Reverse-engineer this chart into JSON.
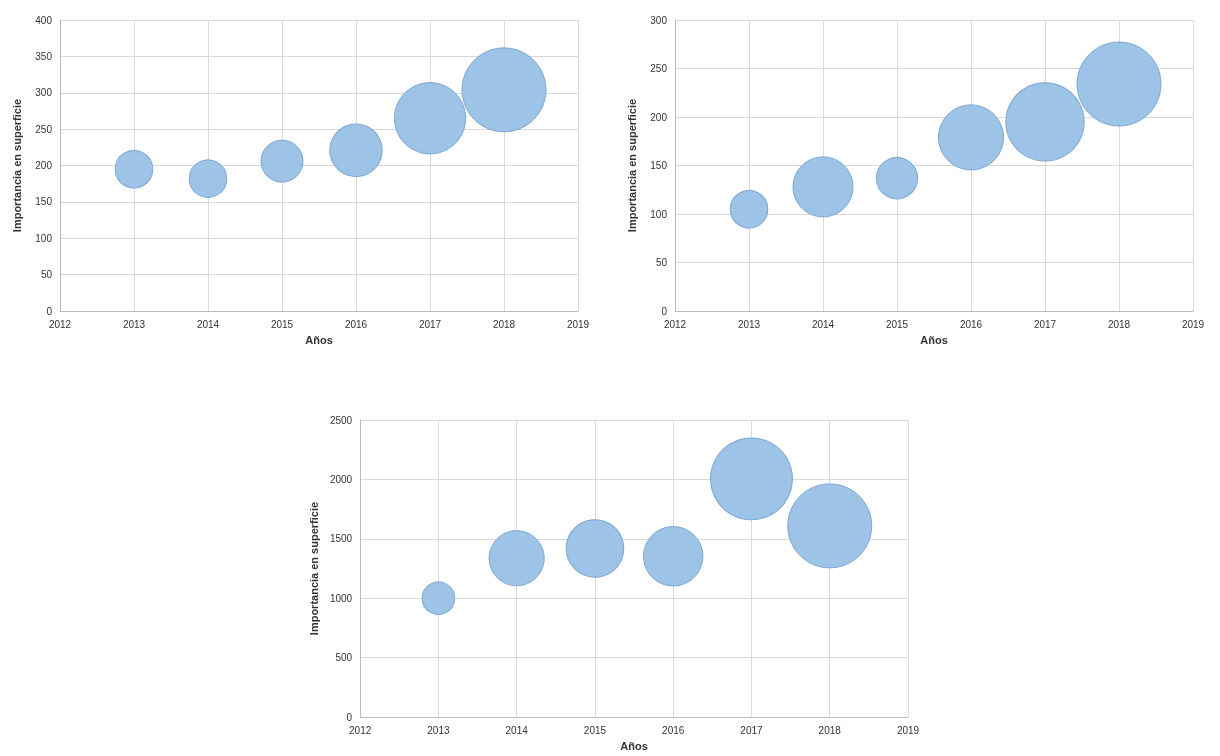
{
  "chart_data": [
    {
      "type": "bubble",
      "xlabel": "Años",
      "ylabel": "Importancia en superficie",
      "x": [
        2013,
        2014,
        2015,
        2016,
        2017,
        2018
      ],
      "values": [
        195,
        182,
        206,
        221,
        265,
        304
      ],
      "sizes": [
        0.2,
        0.2,
        0.25,
        0.39,
        0.72,
        1
      ],
      "color": "#9dc3e6",
      "xlim": [
        2012,
        2019
      ],
      "xticks": [
        2012,
        2013,
        2014,
        2015,
        2016,
        2017,
        2018,
        2019
      ],
      "ylim": [
        0,
        400
      ],
      "yticks": [
        0,
        50,
        100,
        150,
        200,
        250,
        300,
        350,
        400
      ],
      "grid": true
    },
    {
      "type": "bubble",
      "xlabel": "Años",
      "ylabel": "Importancia en superficie",
      "x": [
        2013,
        2014,
        2015,
        2016,
        2017,
        2018
      ],
      "values": [
        105,
        128,
        137,
        179,
        195,
        234
      ],
      "sizes": [
        0.2,
        0.51,
        0.24,
        0.6,
        0.87,
        1
      ],
      "color": "#9dc3e6",
      "xlim": [
        2012,
        2019
      ],
      "xticks": [
        2012,
        2013,
        2014,
        2015,
        2016,
        2017,
        2018,
        2019
      ],
      "ylim": [
        0,
        300
      ],
      "yticks": [
        0,
        50,
        100,
        150,
        200,
        250,
        300
      ],
      "grid": true
    },
    {
      "type": "bubble",
      "xlabel": "Años",
      "ylabel": "Importancia en superficie",
      "x": [
        2013,
        2014,
        2015,
        2016,
        2017,
        2018
      ],
      "values": [
        1000,
        1337,
        1419,
        1353,
        2005,
        1609
      ],
      "sizes": [
        0.15,
        0.43,
        0.47,
        0.5,
        0.95,
        1
      ],
      "color": "#9dc3e6",
      "xlim": [
        2012,
        2019
      ],
      "xticks": [
        2012,
        2013,
        2014,
        2015,
        2016,
        2017,
        2018,
        2019
      ],
      "ylim": [
        0,
        2500
      ],
      "yticks": [
        0,
        500,
        1000,
        1500,
        2000,
        2500
      ],
      "grid": true
    }
  ]
}
